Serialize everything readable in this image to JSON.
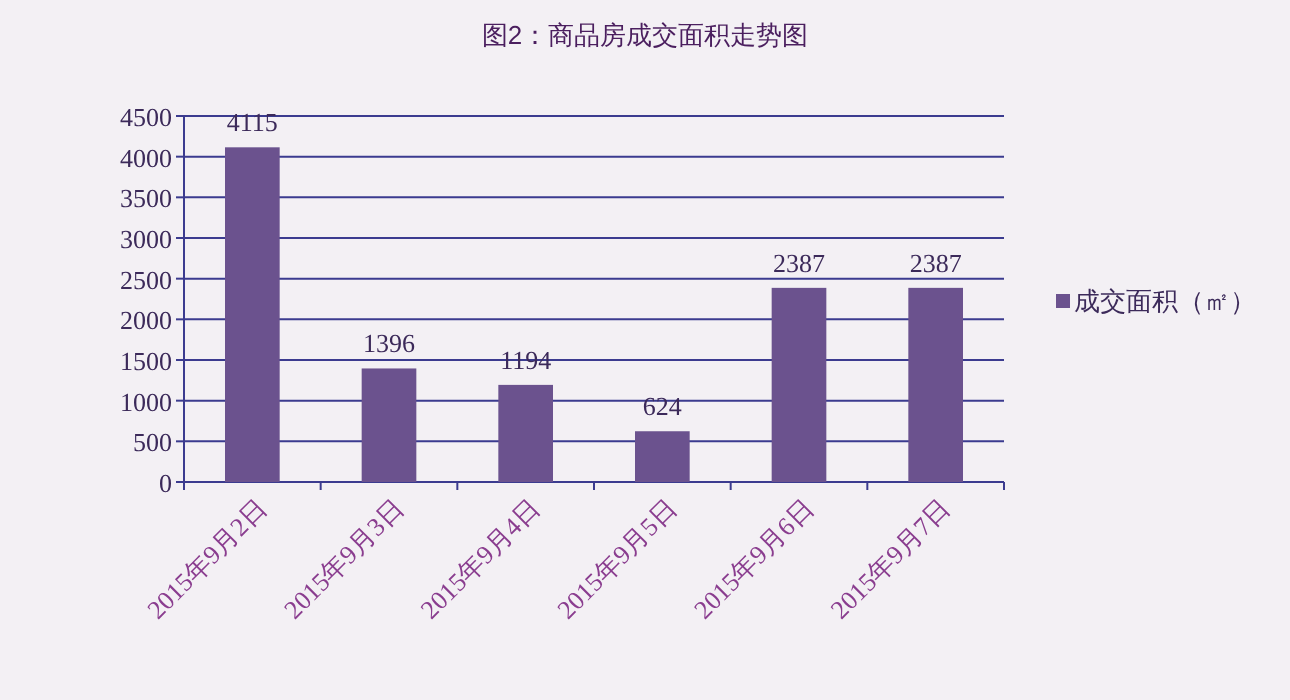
{
  "chart_data": {
    "type": "bar",
    "title": "图2：商品房成交面积走势图",
    "categories": [
      "2015年9月2日",
      "2015年9月3日",
      "2015年9月4日",
      "2015年9月5日",
      "2015年9月6日",
      "2015年9月7日"
    ],
    "series": [
      {
        "name": "成交面积（㎡）",
        "color": "#6b528e",
        "values": [
          4115,
          1396,
          1194,
          624,
          2387,
          2387
        ]
      }
    ],
    "ylim": [
      0,
      4500
    ],
    "yticks": [
      0,
      500,
      1000,
      1500,
      2000,
      2500,
      3000,
      3500,
      4000,
      4500
    ],
    "grid": "y",
    "legend": "right",
    "data_labels": true
  }
}
